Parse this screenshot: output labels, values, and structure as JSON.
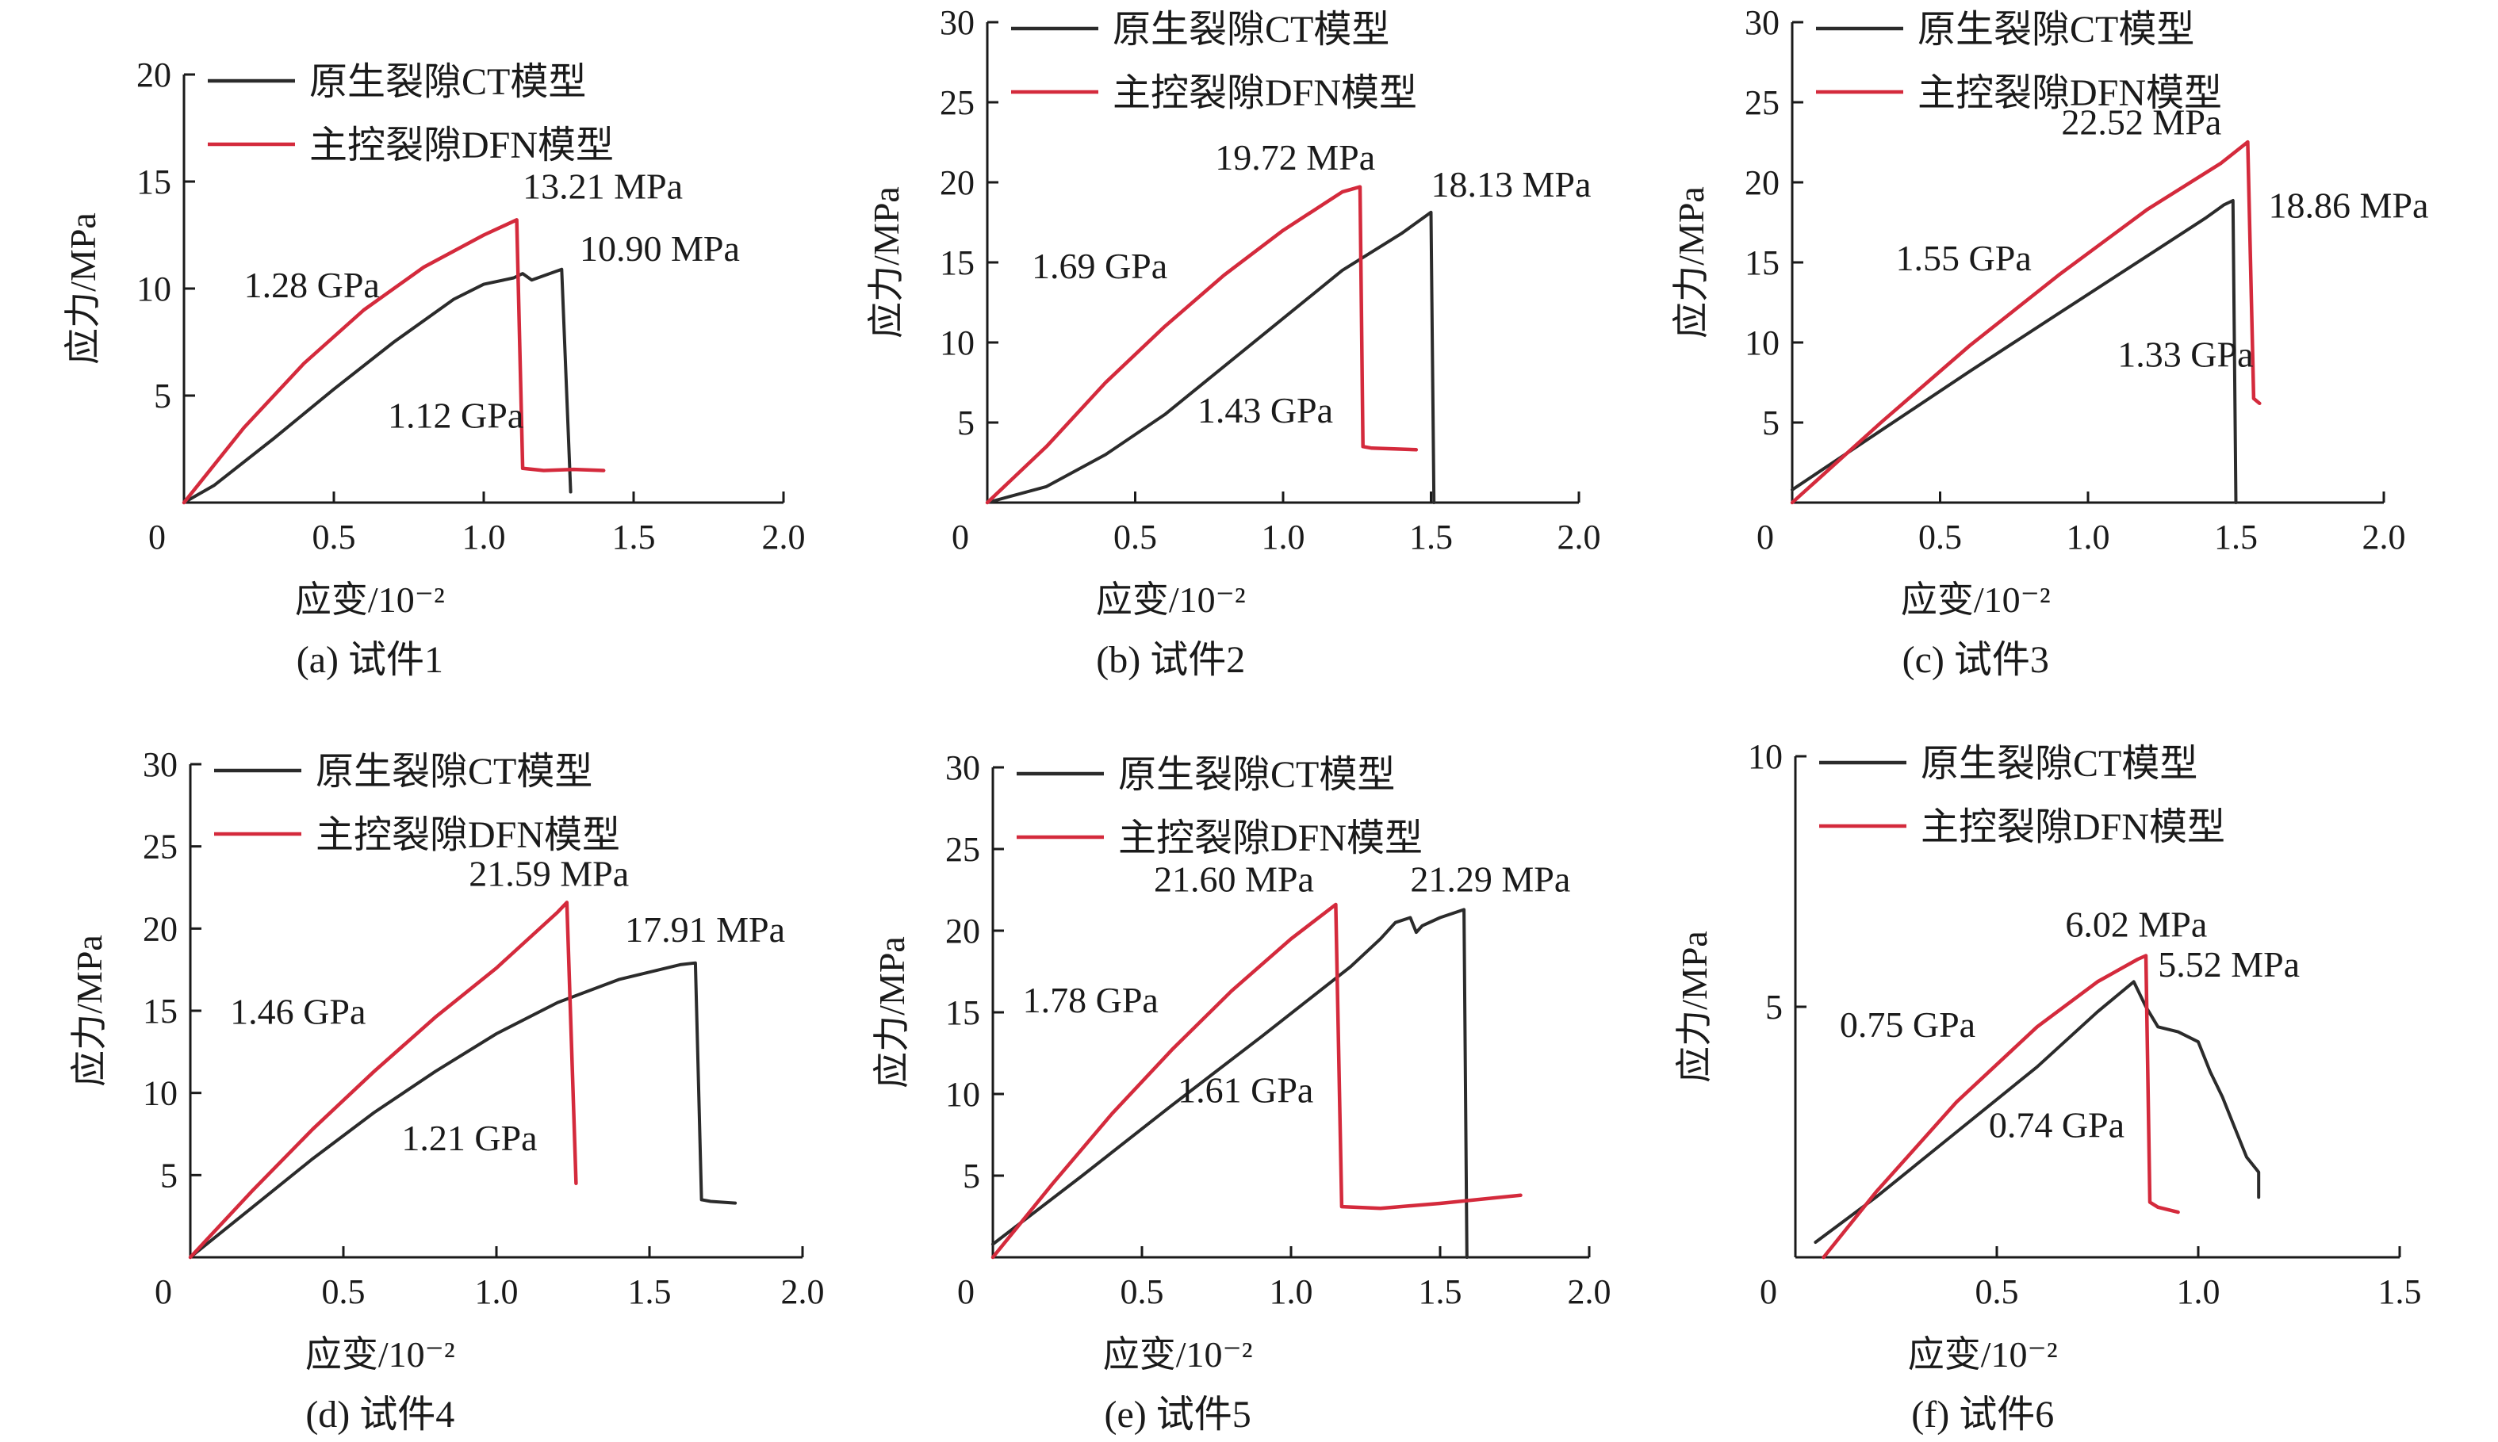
{
  "legend_labels": [
    "原生裂隙CT模型",
    "主控裂隙DFN模型"
  ],
  "colors": {
    "ct": "#2b2b2b",
    "dfn": "#d42a3c",
    "axis": "#1a1a1a"
  },
  "chart_data": [
    {
      "type": "line",
      "caption": "(a) 试件1",
      "xlabel": "应变/10⁻²",
      "ylabel": "应力/MPa",
      "xlim": [
        0,
        2.0
      ],
      "ylim": [
        0,
        20
      ],
      "xticks": [
        0,
        0.5,
        1.0,
        1.5,
        2.0
      ],
      "xtick_labels": [
        "0",
        "0.5",
        "1.0",
        "1.5",
        "2.0"
      ],
      "yticks": [
        5,
        10,
        15,
        20
      ],
      "ytick_labels": [
        "5",
        "10",
        "15",
        "20"
      ],
      "legend_position": "top-left",
      "series": [
        {
          "name": "原生裂隙CT模型",
          "x": [
            0,
            0.1,
            0.3,
            0.5,
            0.7,
            0.9,
            1.0,
            1.1,
            1.13,
            1.16,
            1.22,
            1.26,
            1.29
          ],
          "y": [
            0,
            0.8,
            3.0,
            5.3,
            7.5,
            9.5,
            10.2,
            10.5,
            10.7,
            10.4,
            10.7,
            10.9,
            0.5
          ]
        },
        {
          "name": "主控裂隙DFN模型",
          "x": [
            0,
            0.2,
            0.4,
            0.6,
            0.8,
            1.0,
            1.11,
            1.13,
            1.2,
            1.3,
            1.4
          ],
          "y": [
            0,
            3.5,
            6.5,
            9.0,
            11.0,
            12.5,
            13.21,
            1.6,
            1.5,
            1.55,
            1.5
          ]
        }
      ],
      "annotations": [
        {
          "text": "13.21 MPa",
          "x": 1.13,
          "y": 14.2
        },
        {
          "text": "10.90 MPa",
          "x": 1.32,
          "y": 11.3
        },
        {
          "text": "1.28 GPa",
          "x": 0.2,
          "y": 9.6
        },
        {
          "text": "1.12 GPa",
          "x": 0.68,
          "y": 3.5
        }
      ]
    },
    {
      "type": "line",
      "caption": "(b) 试件2",
      "xlabel": "应变/10⁻²",
      "ylabel": "应力/MPa",
      "xlim": [
        0,
        2.0
      ],
      "ylim": [
        0,
        30
      ],
      "xticks": [
        0,
        0.5,
        1.0,
        1.5,
        2.0
      ],
      "xtick_labels": [
        "0",
        "0.5",
        "1.0",
        "1.5",
        "2.0"
      ],
      "yticks": [
        5,
        10,
        15,
        20,
        25,
        30
      ],
      "ytick_labels": [
        "5",
        "10",
        "15",
        "20",
        "25",
        "30"
      ],
      "legend_position": "top-left",
      "series": [
        {
          "name": "原生裂隙CT模型",
          "x": [
            0,
            0.2,
            0.4,
            0.6,
            0.8,
            1.0,
            1.2,
            1.4,
            1.5,
            1.51
          ],
          "y": [
            0,
            1.0,
            3.0,
            5.5,
            8.5,
            11.5,
            14.5,
            16.8,
            18.13,
            0
          ]
        },
        {
          "name": "主控裂隙DFN模型",
          "x": [
            0,
            0.2,
            0.4,
            0.6,
            0.8,
            1.0,
            1.2,
            1.26,
            1.27,
            1.3,
            1.45
          ],
          "y": [
            0,
            3.5,
            7.5,
            11.0,
            14.2,
            17.0,
            19.4,
            19.72,
            3.5,
            3.4,
            3.3
          ]
        }
      ],
      "annotations": [
        {
          "text": "19.72 MPa",
          "x": 0.77,
          "y": 20.8
        },
        {
          "text": "18.13 MPa",
          "x": 1.5,
          "y": 19.1
        },
        {
          "text": "1.69 GPa",
          "x": 0.15,
          "y": 14.0
        },
        {
          "text": "1.43 GPa",
          "x": 0.71,
          "y": 5.0
        }
      ]
    },
    {
      "type": "line",
      "caption": "(c) 试件3",
      "xlabel": "应变/10⁻²",
      "ylabel": "应力/MPa",
      "xlim": [
        0,
        2.0
      ],
      "ylim": [
        0,
        30
      ],
      "xticks": [
        0,
        0.5,
        1.0,
        1.5,
        2.0
      ],
      "xtick_labels": [
        "0",
        "0.5",
        "1.0",
        "1.5",
        "2.0"
      ],
      "yticks": [
        5,
        10,
        15,
        20,
        25,
        30
      ],
      "ytick_labels": [
        "5",
        "10",
        "15",
        "20",
        "25",
        "30"
      ],
      "legend_position": "top-left",
      "series": [
        {
          "name": "原生裂隙CT模型",
          "x": [
            0,
            0.3,
            0.6,
            0.9,
            1.2,
            1.4,
            1.46,
            1.49,
            1.5
          ],
          "y": [
            0.8,
            4.5,
            8.2,
            11.8,
            15.4,
            17.8,
            18.6,
            18.86,
            0
          ]
        },
        {
          "name": "主控裂隙DFN模型",
          "x": [
            0,
            0.3,
            0.6,
            0.9,
            1.2,
            1.45,
            1.54,
            1.56,
            1.58
          ],
          "y": [
            0,
            5.0,
            9.8,
            14.2,
            18.3,
            21.2,
            22.52,
            6.5,
            6.2
          ]
        }
      ],
      "annotations": [
        {
          "text": "22.52 MPa",
          "x": 0.91,
          "y": 23.0
        },
        {
          "text": "18.86 MPa",
          "x": 1.61,
          "y": 17.8
        },
        {
          "text": "1.55 GPa",
          "x": 0.35,
          "y": 14.5
        },
        {
          "text": "1.33 GPa",
          "x": 1.1,
          "y": 8.5
        }
      ]
    },
    {
      "type": "line",
      "caption": "(d) 试件4",
      "xlabel": "应变/10⁻²",
      "ylabel": "应力/MPa",
      "xlim": [
        0,
        2.0
      ],
      "ylim": [
        0,
        30
      ],
      "xticks": [
        0,
        0.5,
        1.0,
        1.5,
        2.0
      ],
      "xtick_labels": [
        "0",
        "0.5",
        "1.0",
        "1.5",
        "2.0"
      ],
      "yticks": [
        5,
        10,
        15,
        20,
        25,
        30
      ],
      "ytick_labels": [
        "5",
        "10",
        "15",
        "20",
        "25",
        "30"
      ],
      "legend_position": "top-left",
      "series": [
        {
          "name": "原生裂隙CT模型",
          "x": [
            0,
            0.2,
            0.4,
            0.6,
            0.8,
            1.0,
            1.2,
            1.4,
            1.6,
            1.65,
            1.67,
            1.7,
            1.78
          ],
          "y": [
            0,
            3.0,
            6.0,
            8.8,
            11.3,
            13.6,
            15.5,
            16.9,
            17.8,
            17.91,
            3.5,
            3.4,
            3.3
          ]
        },
        {
          "name": "主控裂隙DFN模型",
          "x": [
            0,
            0.2,
            0.4,
            0.6,
            0.8,
            1.0,
            1.2,
            1.23,
            1.26
          ],
          "y": [
            0,
            4.0,
            7.8,
            11.3,
            14.6,
            17.6,
            21.0,
            21.59,
            4.5
          ]
        }
      ],
      "annotations": [
        {
          "text": "21.59 MPa",
          "x": 0.91,
          "y": 22.6
        },
        {
          "text": "17.91 MPa",
          "x": 1.42,
          "y": 19.2
        },
        {
          "text": "1.46 GPa",
          "x": 0.13,
          "y": 14.2
        },
        {
          "text": "1.21 GPa",
          "x": 0.69,
          "y": 6.5
        }
      ]
    },
    {
      "type": "line",
      "caption": "(e) 试件5",
      "xlabel": "应变/10⁻²",
      "ylabel": "应力/MPa",
      "xlim": [
        0,
        2.0
      ],
      "ylim": [
        0,
        30
      ],
      "xticks": [
        0,
        0.5,
        1.0,
        1.5,
        2.0
      ],
      "xtick_labels": [
        "0",
        "0.5",
        "1.0",
        "1.5",
        "2.0"
      ],
      "yticks": [
        5,
        10,
        15,
        20,
        25,
        30
      ],
      "ytick_labels": [
        "5",
        "10",
        "15",
        "20",
        "25",
        "30"
      ],
      "legend_position": "top-left",
      "series": [
        {
          "name": "原生裂隙CT模型",
          "x": [
            0,
            0.3,
            0.6,
            0.9,
            1.2,
            1.3,
            1.35,
            1.4,
            1.42,
            1.44,
            1.5,
            1.58,
            1.59
          ],
          "y": [
            0.8,
            5.0,
            9.3,
            13.5,
            17.8,
            19.5,
            20.5,
            20.8,
            19.9,
            20.3,
            20.8,
            21.29,
            0
          ]
        },
        {
          "name": "主控裂隙DFN模型",
          "x": [
            0,
            0.2,
            0.4,
            0.6,
            0.8,
            1.0,
            1.15,
            1.17,
            1.3,
            1.5,
            1.77
          ],
          "y": [
            0,
            4.5,
            8.8,
            12.7,
            16.3,
            19.5,
            21.6,
            3.1,
            3.0,
            3.3,
            3.8
          ]
        }
      ],
      "annotations": [
        {
          "text": "21.60 MPa",
          "x": 0.54,
          "y": 22.4
        },
        {
          "text": "21.29 MPa",
          "x": 1.4,
          "y": 22.4
        },
        {
          "text": "1.78 GPa",
          "x": 0.1,
          "y": 15.0
        },
        {
          "text": "1.61 GPa",
          "x": 0.62,
          "y": 9.5
        }
      ]
    },
    {
      "type": "line",
      "caption": "(f) 试件6",
      "xlabel": "应变/10⁻²",
      "ylabel": "应力/MPa",
      "xlim": [
        0,
        1.5
      ],
      "ylim": [
        0,
        10
      ],
      "xticks": [
        0,
        0.5,
        1.0,
        1.5
      ],
      "xtick_labels": [
        "0",
        "0.5",
        "1.0",
        "1.5"
      ],
      "yticks": [
        5,
        10
      ],
      "ytick_labels": [
        "5",
        "10"
      ],
      "legend_position": "top-left",
      "series": [
        {
          "name": "原生裂隙CT模型",
          "x": [
            0.05,
            0.2,
            0.4,
            0.6,
            0.75,
            0.84,
            0.87,
            0.9,
            0.95,
            1.0,
            1.03,
            1.06,
            1.09,
            1.12,
            1.15,
            1.15
          ],
          "y": [
            0.3,
            1.2,
            2.5,
            3.8,
            4.9,
            5.5,
            5.0,
            4.6,
            4.5,
            4.3,
            3.7,
            3.2,
            2.6,
            2.0,
            1.7,
            1.2
          ]
        },
        {
          "name": "主控裂隙DFN模型",
          "x": [
            0.07,
            0.2,
            0.4,
            0.6,
            0.75,
            0.85,
            0.87,
            0.88,
            0.9,
            0.95
          ],
          "y": [
            0,
            1.3,
            3.1,
            4.6,
            5.5,
            5.95,
            6.02,
            1.1,
            1.0,
            0.9
          ]
        }
      ],
      "annotations": [
        {
          "text": "6.02 MPa",
          "x": 0.67,
          "y": 6.4
        },
        {
          "text": "5.52 MPa",
          "x": 0.9,
          "y": 5.6
        },
        {
          "text": "0.75 GPa",
          "x": 0.11,
          "y": 4.4
        },
        {
          "text": "0.74 GPa",
          "x": 0.48,
          "y": 2.4
        }
      ]
    }
  ]
}
